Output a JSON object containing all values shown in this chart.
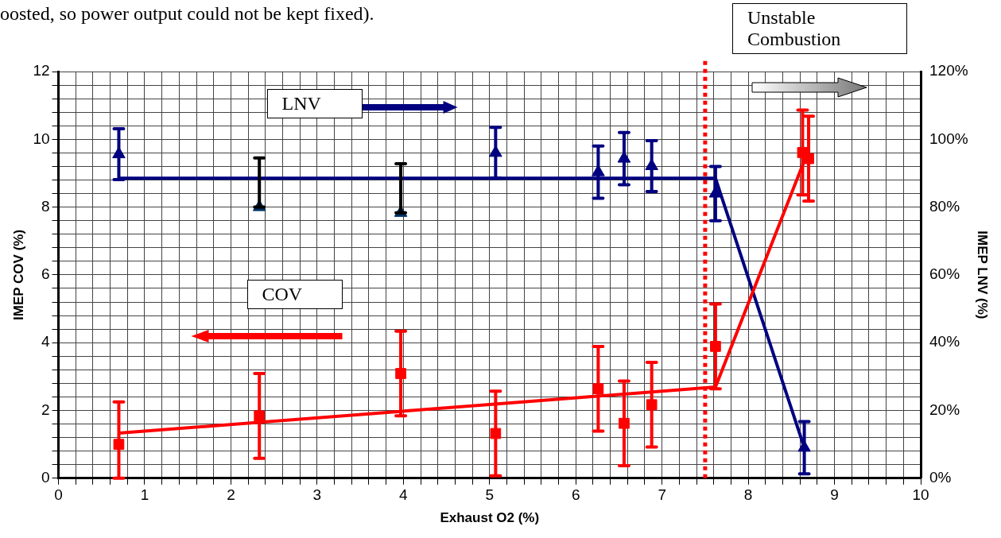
{
  "chart_data": {
    "type": "scatter",
    "xlabel": "Exhaust O2 (%)",
    "ylabel": "IMEP COV (%)",
    "y2label": "IMEP LNV (%)",
    "annotations": [
      "oosted, so power output could not be kept fixed).",
      "LNV",
      "COV",
      "Unstable Combustion"
    ],
    "xlim": [
      0,
      10
    ],
    "ylim": [
      0,
      12
    ],
    "y2lim": [
      0,
      120
    ],
    "xticks": [
      0,
      {
        "value": 0.2,
        "label": null
      },
      {
        "value": 0.4,
        "label": null
      },
      {
        "value": 0.6,
        "label": null
      },
      {
        "value": 0.8,
        "label": null
      },
      1,
      {
        "value": 1.2,
        "label": null
      },
      {
        "value": 1.4,
        "label": null
      },
      {
        "value": 1.6,
        "label": null
      },
      {
        "value": 1.8,
        "label": null
      },
      2,
      {
        "value": 2.2,
        "label": null
      },
      {
        "value": 2.4,
        "label": null
      },
      {
        "value": 2.6,
        "label": null
      },
      {
        "value": 2.8,
        "label": null
      },
      3,
      {
        "value": 3.2,
        "label": null
      },
      {
        "value": 3.4,
        "label": null
      },
      {
        "value": 3.6,
        "label": null
      },
      {
        "value": 3.8,
        "label": null
      },
      4,
      {
        "value": 4.2,
        "label": null
      },
      {
        "value": 4.4,
        "label": null
      },
      {
        "value": 4.6,
        "label": null
      },
      {
        "value": 4.8,
        "label": null
      },
      5,
      {
        "value": 5.2,
        "label": null
      },
      {
        "value": 5.4,
        "label": null
      },
      {
        "value": 5.6,
        "label": null
      },
      {
        "value": 5.8,
        "label": null
      },
      6,
      {
        "value": 6.2,
        "label": null
      },
      {
        "value": 6.4,
        "label": null
      },
      {
        "value": 6.6,
        "label": null
      },
      {
        "value": 6.8,
        "label": null
      },
      7,
      {
        "value": 7.2,
        "label": null
      },
      {
        "value": 7.4,
        "label": null
      },
      {
        "value": 7.6,
        "label": null
      },
      {
        "value": 7.8,
        "label": null
      },
      8,
      {
        "value": 8.2,
        "label": null
      },
      {
        "value": 8.4,
        "label": null
      },
      {
        "value": 8.6,
        "label": null
      },
      {
        "value": 8.8,
        "label": null
      },
      9,
      {
        "value": 9.2,
        "label": null
      },
      {
        "value": 9.4,
        "label": null
      },
      {
        "value": 9.6,
        "label": null
      },
      {
        "value": 9.8,
        "label": null
      },
      10
    ],
    "yticks": [
      0,
      {
        "value": 0.4,
        "label": null
      },
      {
        "value": 0.8,
        "label": null
      },
      {
        "value": 1.2,
        "label": null
      },
      {
        "value": 1.6,
        "label": null
      },
      2,
      {
        "value": 2.4,
        "label": null
      },
      {
        "value": 2.8,
        "label": null
      },
      {
        "value": 3.2,
        "label": null
      },
      {
        "value": 3.6,
        "label": null
      },
      4,
      {
        "value": 4.4,
        "label": null
      },
      {
        "value": 4.8,
        "label": null
      },
      {
        "value": 5.2,
        "label": null
      },
      {
        "value": 5.6,
        "label": null
      },
      6,
      {
        "value": 6.4,
        "label": null
      },
      {
        "value": 6.8,
        "label": null
      },
      {
        "value": 7.2,
        "label": null
      },
      {
        "value": 7.6,
        "label": null
      },
      8,
      {
        "value": 8.4,
        "label": null
      },
      {
        "value": 8.8,
        "label": null
      },
      {
        "value": 9.2,
        "label": null
      },
      {
        "value": 9.6,
        "label": null
      },
      10,
      {
        "value": 10.4,
        "label": null
      },
      {
        "value": 10.8,
        "label": null
      },
      {
        "value": 11.2,
        "label": null
      },
      {
        "value": 11.6,
        "label": null
      },
      12
    ],
    "y2ticks": [
      {
        "value": 0,
        "label": "0%"
      },
      {
        "value": 20,
        "label": "20%"
      },
      {
        "value": 40,
        "label": "40%"
      },
      {
        "value": 60,
        "label": "60%"
      },
      {
        "value": 80,
        "label": "80%"
      },
      {
        "value": 100,
        "label": "100%"
      },
      {
        "value": 120,
        "label": "120%"
      }
    ],
    "grid": true,
    "legend": false,
    "ref_lines": [
      {
        "axis": "x",
        "value": 7.5,
        "color": "#ff0000",
        "line_style": "dotted"
      }
    ],
    "series": [
      {
        "type": "scatter",
        "marker": "square",
        "color": "#ff0000",
        "x": [
          0.7,
          2.33,
          3.97,
          5.07,
          6.26,
          6.56,
          6.88,
          7.62,
          8.63,
          8.7
        ],
        "values": [
          1.0,
          1.84,
          3.09,
          1.32,
          2.64,
          1.62,
          2.17,
          3.89,
          9.61,
          9.43
        ],
        "errors": [
          [
            0,
            2.25
          ],
          1.25,
          1.25,
          1.25,
          1.25,
          1.25,
          1.25,
          1.25,
          1.25,
          1.25
        ]
      },
      {
        "type": "line",
        "marker": "none",
        "color": "#ff0000",
        "x": [
          0.7,
          7.62,
          8.67
        ],
        "values": [
          1.33,
          2.69,
          9.5
        ]
      },
      {
        "type": "scatter",
        "marker": "triangle",
        "color": "#000080",
        "axis": "y2",
        "x": [
          0.7,
          5.07,
          6.26,
          6.56,
          6.88,
          7.62,
          8.65
        ],
        "values": [
          95.6,
          96,
          90.3,
          94.3,
          92.1,
          84,
          9
        ],
        "errors": [
          7.5,
          7.5,
          7.7,
          7.7,
          7.5,
          8,
          7.7
        ]
      },
      {
        "type": "scatter",
        "marker": "triangle",
        "color": "#000000",
        "colors": [
          "#003366",
          "#003366"
        ],
        "axis": "y2",
        "x": [
          2.33,
          3.97
        ],
        "values": [
          80,
          78.3
        ],
        "errors": [
          [
            80,
            94.5
          ],
          [
            78.3,
            92.8
          ]
        ]
      },
      {
        "type": "line",
        "marker": "none",
        "color": "#000080",
        "axis": "y2",
        "x": [
          0.7,
          7.62,
          8.65
        ],
        "values": [
          88.5,
          88.5,
          9
        ]
      }
    ]
  }
}
